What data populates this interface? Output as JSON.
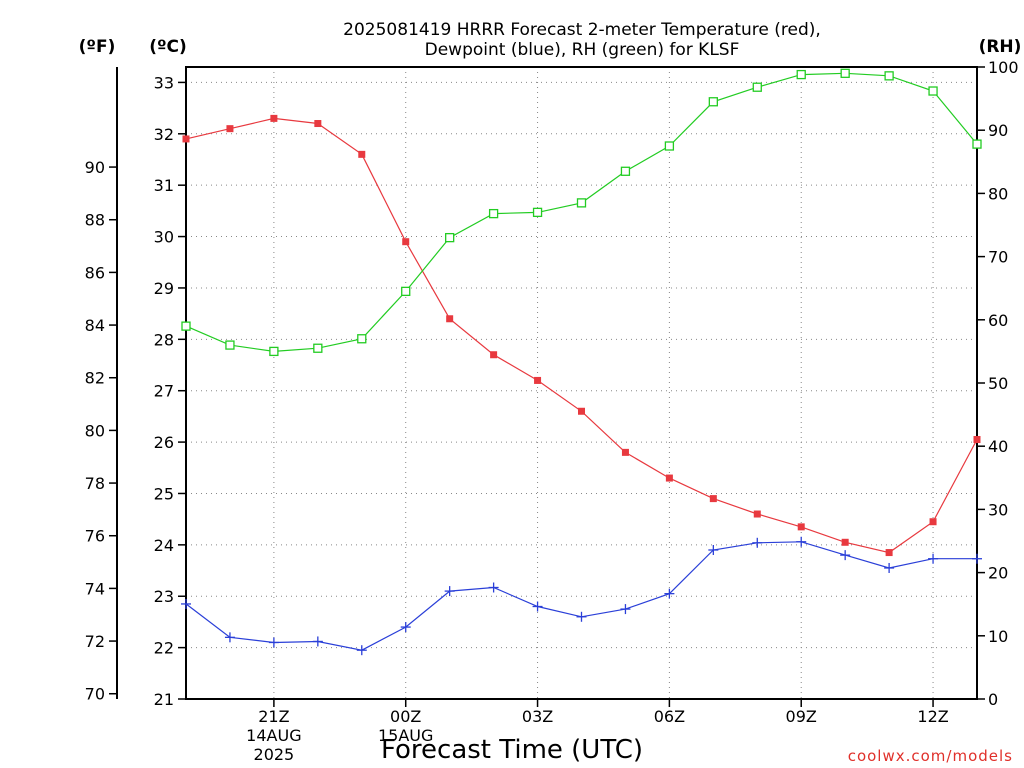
{
  "chart_data": {
    "type": "line",
    "title_line1": "2025081419 HRRR Forecast 2-meter Temperature (red),",
    "title_line2": "Dewpoint (blue), RH (green) for KLSF",
    "xlabel": "Forecast Time (UTC)",
    "credit": "coolwx.com/models",
    "axes": {
      "left_outer": {
        "unit": "(ºF)",
        "range": [
          69.8,
          93.8
        ],
        "ticks": [
          70,
          72,
          74,
          76,
          78,
          80,
          82,
          84,
          86,
          88,
          90
        ]
      },
      "left_inner": {
        "unit": "(ºC)",
        "range": [
          21,
          33.3
        ],
        "ticks": [
          21,
          22,
          23,
          24,
          25,
          26,
          27,
          28,
          29,
          30,
          31,
          32,
          33
        ]
      },
      "right": {
        "unit": "(RH)",
        "range": [
          0,
          100
        ],
        "ticks": [
          0,
          10,
          20,
          30,
          40,
          50,
          60,
          70,
          80,
          90,
          100
        ]
      }
    },
    "x": {
      "unit": "hour",
      "range": [
        19,
        37
      ],
      "tick_hours": [
        21,
        24,
        27,
        30,
        33,
        36
      ],
      "tick_labels": [
        "21Z",
        "00Z",
        "03Z",
        "06Z",
        "09Z",
        "12Z"
      ],
      "date_labels": [
        {
          "hour": 21,
          "lines": [
            "14AUG",
            "2025"
          ]
        },
        {
          "hour": 24,
          "lines": [
            "15AUG"
          ]
        }
      ]
    },
    "grid": true,
    "series": [
      {
        "name": "Temperature (red)",
        "axis": "left_inner",
        "color": "#e8393f",
        "marker": "filled-square",
        "hours": [
          19,
          20,
          21,
          22,
          23,
          24,
          25,
          26,
          27,
          28,
          29,
          30,
          31,
          32,
          33,
          34,
          35,
          36,
          37
        ],
        "values": [
          31.9,
          32.1,
          32.3,
          32.2,
          31.6,
          29.9,
          28.4,
          27.7,
          27.2,
          26.6,
          25.8,
          25.3,
          24.9,
          24.6,
          24.35,
          24.05,
          23.85,
          24.45,
          26.05
        ]
      },
      {
        "name": "Dewpoint (blue)",
        "axis": "left_inner",
        "color": "#2a3fd8",
        "marker": "plus",
        "hours": [
          19,
          20,
          21,
          22,
          23,
          24,
          25,
          26,
          27,
          28,
          29,
          30,
          31,
          32,
          33,
          34,
          35,
          36,
          37
        ],
        "values": [
          22.85,
          22.2,
          22.1,
          22.12,
          21.95,
          22.4,
          23.1,
          23.17,
          22.8,
          22.6,
          22.75,
          23.05,
          23.9,
          24.04,
          24.06,
          23.8,
          23.55,
          23.73,
          23.73
        ]
      },
      {
        "name": "RH (green)",
        "axis": "right",
        "color": "#22cc22",
        "marker": "open-square",
        "hours": [
          19,
          20,
          21,
          22,
          23,
          24,
          25,
          26,
          27,
          28,
          29,
          30,
          31,
          32,
          33,
          34,
          35,
          36,
          37
        ],
        "values": [
          59,
          56,
          55,
          55.5,
          57,
          64.5,
          73,
          76.8,
          77,
          78.5,
          83.5,
          87.5,
          94.5,
          96.8,
          98.8,
          99,
          98.6,
          96.2,
          87.8
        ]
      }
    ]
  }
}
